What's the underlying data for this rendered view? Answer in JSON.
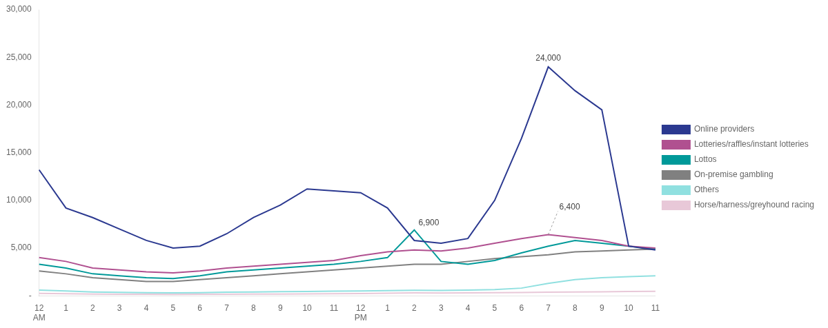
{
  "chart_data": {
    "type": "line",
    "categories": [
      "12",
      "1",
      "2",
      "3",
      "4",
      "5",
      "6",
      "7",
      "8",
      "9",
      "10",
      "11",
      "12",
      "1",
      "2",
      "3",
      "4",
      "5",
      "6",
      "7",
      "8",
      "9",
      "10",
      "11"
    ],
    "series": [
      {
        "name": "Online providers",
        "color": "#2b3990",
        "values": [
          13200,
          9200,
          8200,
          7000,
          5800,
          5000,
          5200,
          6500,
          8200,
          9500,
          11200,
          11000,
          10800,
          9200,
          5800,
          5500,
          6000,
          10000,
          16500,
          24000,
          21500,
          19500,
          5200,
          4800
        ]
      },
      {
        "name": "Lotteries/raffles/instant lotteries",
        "color": "#b05090",
        "values": [
          4000,
          3600,
          2900,
          2700,
          2500,
          2400,
          2600,
          2900,
          3100,
          3300,
          3500,
          3700,
          4200,
          4600,
          4800,
          4700,
          5000,
          5500,
          6000,
          6400,
          6100,
          5800,
          5200,
          5000
        ]
      },
      {
        "name": "Lottos",
        "color": "#009999",
        "values": [
          3300,
          2900,
          2300,
          2100,
          1900,
          1800,
          2100,
          2500,
          2700,
          2900,
          3100,
          3300,
          3600,
          4000,
          6900,
          3600,
          3300,
          3700,
          4500,
          5200,
          5800,
          5500,
          5200,
          4900
        ]
      },
      {
        "name": "On-premise gambling",
        "color": "#808080",
        "values": [
          2600,
          2300,
          1900,
          1700,
          1500,
          1500,
          1700,
          1900,
          2100,
          2300,
          2500,
          2700,
          2900,
          3100,
          3300,
          3300,
          3600,
          3900,
          4100,
          4300,
          4600,
          4700,
          4800,
          4900
        ]
      },
      {
        "name": "Others",
        "color": "#90e0e0",
        "values": [
          600,
          500,
          400,
          350,
          320,
          300,
          330,
          380,
          400,
          430,
          450,
          480,
          500,
          530,
          570,
          550,
          590,
          650,
          800,
          1300,
          1700,
          1900,
          2000,
          2100
        ]
      },
      {
        "name": "Horse/harness/greyhound racing",
        "color": "#e8c8d8",
        "values": [
          250,
          220,
          180,
          160,
          150,
          140,
          150,
          160,
          170,
          180,
          200,
          220,
          240,
          270,
          300,
          280,
          300,
          320,
          340,
          370,
          400,
          420,
          440,
          470
        ]
      }
    ],
    "ylim": [
      0,
      30000
    ],
    "yticks": [
      {
        "value": 0,
        "label": "-"
      },
      {
        "value": 5000,
        "label": "5,000"
      },
      {
        "value": 10000,
        "label": "10,000"
      },
      {
        "value": 15000,
        "label": "15,000"
      },
      {
        "value": 20000,
        "label": "20,000"
      },
      {
        "value": 25000,
        "label": "25,000"
      },
      {
        "value": 30000,
        "label": "30,000"
      }
    ],
    "annotations": [
      {
        "text": "AM",
        "x": 0
      },
      {
        "text": "PM",
        "x": 12
      },
      {
        "text": "24,000",
        "x": 19,
        "y": 24000
      },
      {
        "text": "6,900",
        "x": 14,
        "y": 6900
      },
      {
        "text": "6,400",
        "x": 19,
        "y": 6400
      }
    ],
    "grid": false,
    "legend": "right"
  }
}
